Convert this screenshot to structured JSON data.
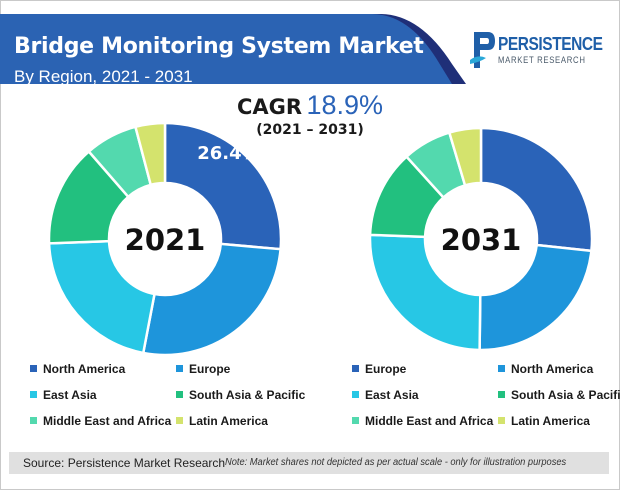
{
  "header": {
    "title": "Bridge Monitoring System Market",
    "subtitle": "By Region, 2021 - 2031"
  },
  "logo": {
    "name": "PERSISTENCE",
    "tagline": "MARKET RESEARCH"
  },
  "cagr": {
    "label": "CAGR",
    "value": "18.9%",
    "period": "(2021 – 2031)"
  },
  "chart_data": [
    {
      "type": "pie",
      "subtype": "donut",
      "center_label": "2021",
      "highlight_label": "26.4%",
      "highlight_category": "North America",
      "categories": [
        "North America",
        "Europe",
        "East Asia",
        "South Asia  & Pacific",
        "Middle East and Africa",
        "Latin America"
      ],
      "values": [
        26.4,
        26.6,
        21.4,
        14.2,
        7.3,
        4.1
      ],
      "colors": [
        "#2a63b8",
        "#1e95db",
        "#27c7e5",
        "#22c07f",
        "#53d9ae",
        "#d4e36d"
      ],
      "legend": [
        "North America",
        "Europe",
        "East Asia",
        "South Asia  & Pacific",
        "Middle East and Africa",
        "Latin America"
      ]
    },
    {
      "type": "pie",
      "subtype": "donut",
      "center_label": "2031",
      "categories": [
        "Europe",
        "North America",
        "East Asia",
        "South Asia  & Pacific",
        "Middle East and Africa",
        "Latin America"
      ],
      "values": [
        26.7,
        23.5,
        25.4,
        12.7,
        7.1,
        4.6
      ],
      "colors": [
        "#2a63b8",
        "#1e95db",
        "#27c7e5",
        "#22c07f",
        "#53d9ae",
        "#d4e36d"
      ],
      "legend": [
        "Europe",
        "North America",
        "East Asia",
        "South Asia  & Pacific",
        "Middle East and Africa",
        "Latin America"
      ]
    }
  ],
  "footer": {
    "source": "Source: Persistence Market Research",
    "note": "Note: Market shares not depicted as per actual scale - only for illustration purposes"
  }
}
